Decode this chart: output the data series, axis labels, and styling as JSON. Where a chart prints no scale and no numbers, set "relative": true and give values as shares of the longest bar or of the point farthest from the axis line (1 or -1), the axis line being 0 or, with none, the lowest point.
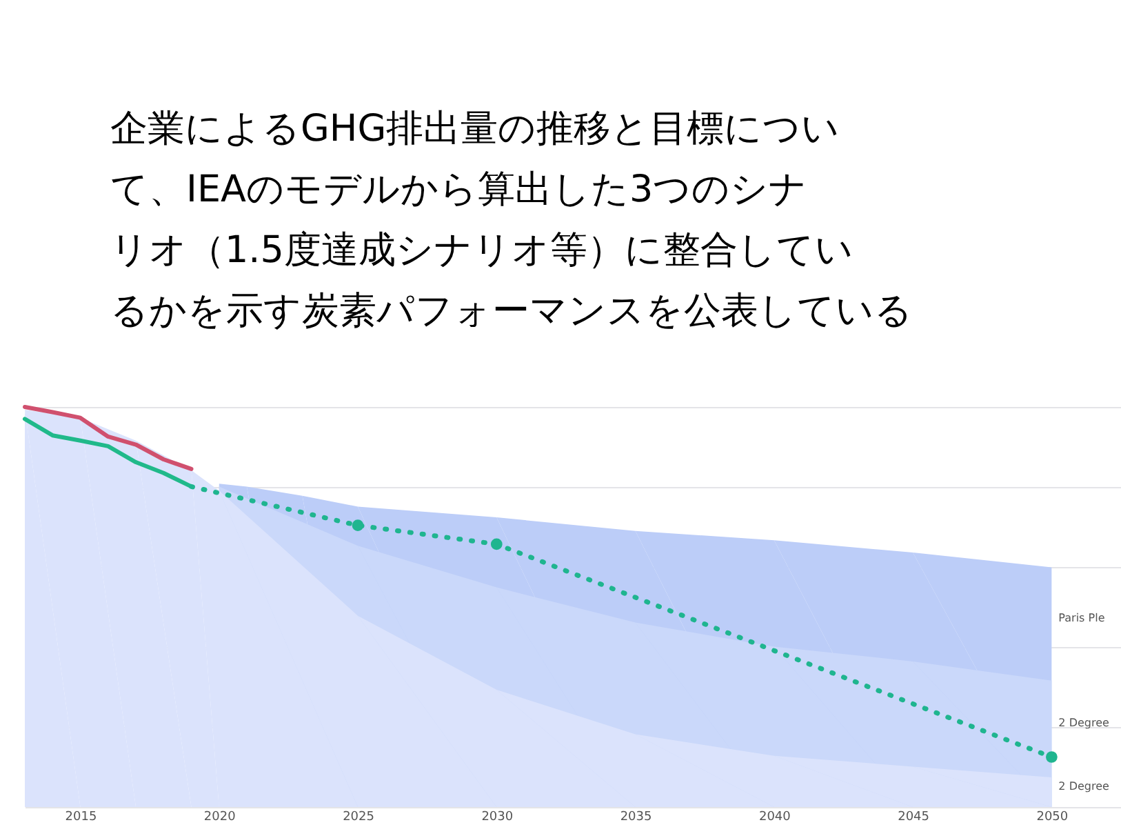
{
  "chart_data": {
    "type": "area",
    "relative": true,
    "title": "企業によるGHG排出量の推移と目標について、IEAのモデルから算出した3つのシナリオ（1.5度達成シナリオ等）に整合しているかを示す炭素パフォーマンスを公表している",
    "x": [
      2013,
      2015,
      2017,
      2019,
      2020,
      2025,
      2030,
      2035,
      2040,
      2045,
      2050
    ],
    "xlim": [
      2013,
      2052.5
    ],
    "xticks": [
      2015,
      2020,
      2025,
      2030,
      2035,
      2040,
      2045,
      2050
    ],
    "grid": "y",
    "series": [
      {
        "name": "Paris Ple",
        "color": "#bccdf8",
        "x": [
          2020,
          2021,
          2023,
          2025,
          2030,
          2035,
          2040,
          2045,
          2050
        ],
        "values": [
          0.808,
          0.801,
          0.778,
          0.751,
          0.724,
          0.69,
          0.667,
          0.636,
          0.599
        ]
      },
      {
        "name": "2 Degree",
        "color": "#cad8fa",
        "x": [
          2020,
          2025,
          2030,
          2035,
          2040,
          2045,
          2050
        ],
        "values": [
          0.801,
          0.653,
          0.549,
          0.461,
          0.401,
          0.364,
          0.316
        ]
      },
      {
        "name": "2 Degree",
        "color": "#dbe3fc",
        "values": [
          0.993,
          0.973,
          0.916,
          0.842,
          0.791,
          0.478,
          0.293,
          0.182,
          0.128,
          0.101,
          0.074
        ]
      },
      {
        "type": "line",
        "color": "#d0506e",
        "x": [
          2013,
          2014,
          2015,
          2016,
          2017,
          2018,
          2019
        ],
        "values": [
          1.0,
          0.987,
          0.973,
          0.926,
          0.906,
          0.869,
          0.845
        ]
      },
      {
        "type": "line",
        "color": "#20b98a",
        "x": [
          2013,
          2014,
          2015,
          2016,
          2017,
          2018,
          2019
        ],
        "values": [
          0.97,
          0.929,
          0.916,
          0.902,
          0.862,
          0.835,
          0.801
        ]
      },
      {
        "type": "line",
        "line_style": "dotted",
        "color": "#1fb58f",
        "x": [
          2019,
          2025,
          2030,
          2050
        ],
        "values": [
          0.801,
          0.704,
          0.657,
          0.125
        ]
      },
      {
        "type": "scatter",
        "marker": "circle",
        "color": "#1fb58f",
        "x": [
          2025,
          2030,
          2050
        ],
        "values": [
          0.704,
          0.657,
          0.125
        ]
      }
    ]
  }
}
